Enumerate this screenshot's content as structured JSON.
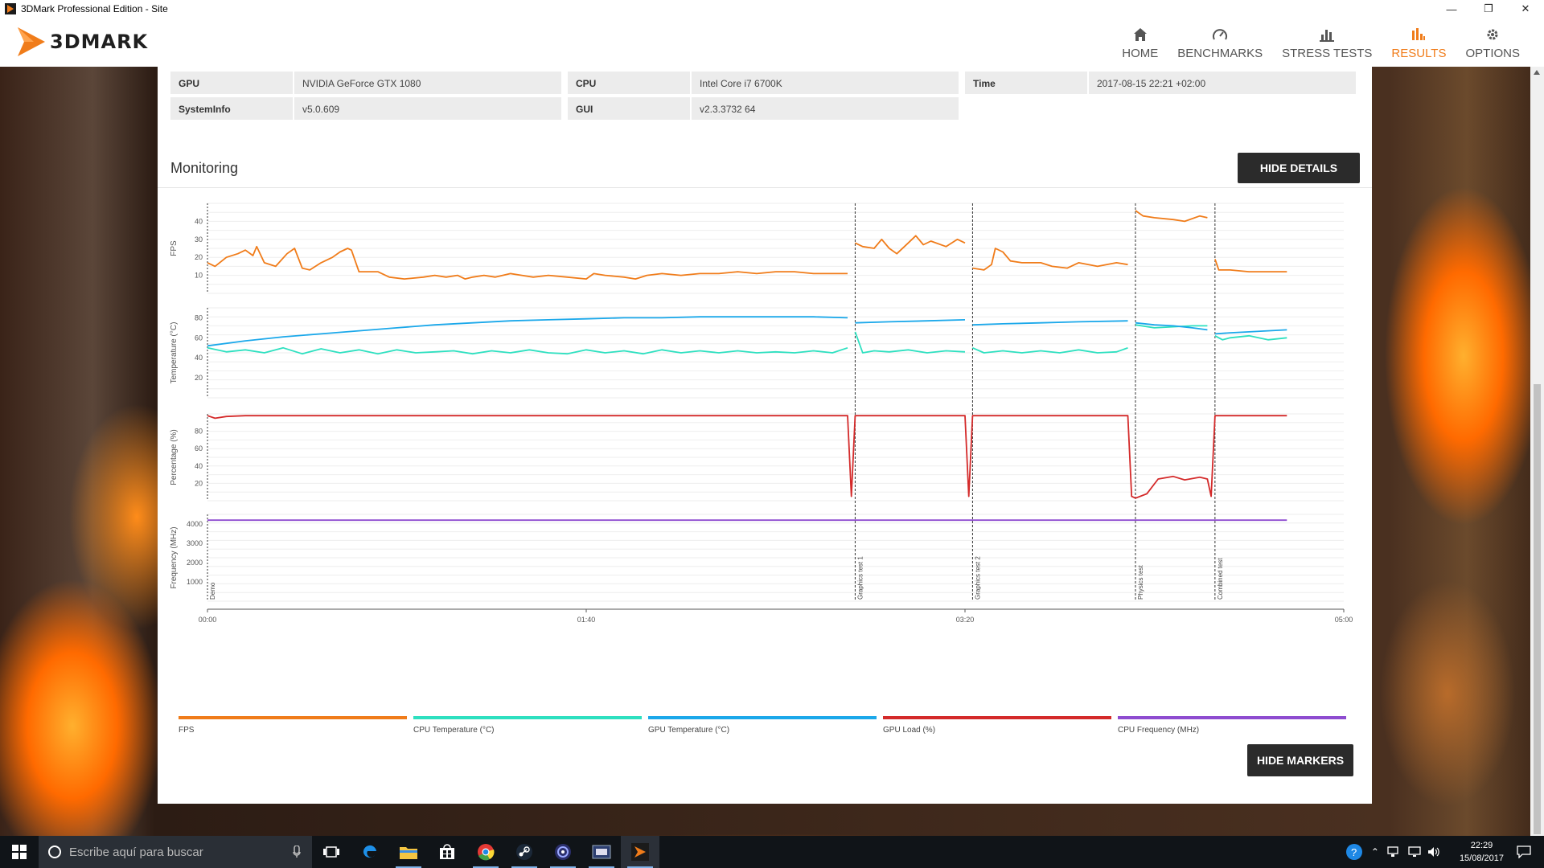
{
  "window": {
    "title": "3DMark Professional Edition - Site",
    "controls": [
      "—",
      "❐",
      "✕"
    ]
  },
  "app": {
    "logo_text": "3DMARK",
    "nav": [
      {
        "label": "HOME",
        "icon": "home-icon",
        "active": false
      },
      {
        "label": "BENCHMARKS",
        "icon": "gauge-icon",
        "active": false
      },
      {
        "label": "STRESS TESTS",
        "icon": "bar-chart-icon",
        "active": false
      },
      {
        "label": "RESULTS",
        "icon": "results-chart-icon",
        "active": true
      },
      {
        "label": "OPTIONS",
        "icon": "gear-icon",
        "active": false
      }
    ],
    "accent_color": "#f07c1a"
  },
  "system_info": {
    "gpu_label": "GPU",
    "gpu_value": "NVIDIA GeForce GTX 1080",
    "cpu_label": "CPU",
    "cpu_value": "Intel Core i7 6700K",
    "time_label": "Time",
    "time_value": "2017-08-15 22:21 +02:00",
    "sysinfo_label": "SystemInfo",
    "sysinfo_value": "v5.0.609",
    "gui_label": "GUI",
    "gui_value": "v2.3.3732 64"
  },
  "monitoring": {
    "title": "Monitoring",
    "hide_details_label": "HIDE DETAILS",
    "hide_markers_label": "HIDE MARKERS"
  },
  "chart_data": {
    "type": "line",
    "x_ticks": [
      "00:00",
      "01:40",
      "03:20",
      "05:00"
    ],
    "x_range_seconds": [
      0,
      300
    ],
    "markers": [
      {
        "label": "Demo",
        "t": 0
      },
      {
        "label": "Graphics test 1",
        "t": 171
      },
      {
        "label": "Graphics test 2",
        "t": 202
      },
      {
        "label": "Physics test",
        "t": 245
      },
      {
        "label": "Combined test",
        "t": 266
      }
    ],
    "panels": [
      {
        "ylabel": "FPS",
        "yticks": [
          10,
          20,
          30,
          40
        ],
        "ylim": [
          0,
          50
        ]
      },
      {
        "ylabel": "Temperature (°C)",
        "yticks": [
          20,
          40,
          60,
          80
        ],
        "ylim": [
          0,
          90
        ]
      },
      {
        "ylabel": "Percentage (%)",
        "yticks": [
          20,
          40,
          60,
          80
        ],
        "ylim": [
          0,
          100
        ]
      },
      {
        "ylabel": "Frequency (MHz)",
        "yticks": [
          1000,
          2000,
          3000,
          4000
        ],
        "ylim": [
          0,
          4500
        ]
      }
    ],
    "series": [
      {
        "name": "FPS",
        "color": "#f07c1a",
        "panel": 0,
        "points": [
          [
            0,
            17
          ],
          [
            2,
            15
          ],
          [
            5,
            20
          ],
          [
            8,
            22
          ],
          [
            10,
            24
          ],
          [
            12,
            21
          ],
          [
            13,
            26
          ],
          [
            15,
            17
          ],
          [
            18,
            15
          ],
          [
            21,
            22
          ],
          [
            23,
            25
          ],
          [
            25,
            14
          ],
          [
            27,
            13
          ],
          [
            30,
            17
          ],
          [
            33,
            20
          ],
          [
            35,
            23
          ],
          [
            37,
            25
          ],
          [
            38,
            24
          ],
          [
            40,
            12
          ],
          [
            45,
            12
          ],
          [
            48,
            9
          ],
          [
            52,
            8
          ],
          [
            57,
            9
          ],
          [
            60,
            10
          ],
          [
            63,
            9
          ],
          [
            66,
            10
          ],
          [
            68,
            8
          ],
          [
            70,
            9
          ],
          [
            73,
            10
          ],
          [
            76,
            9
          ],
          [
            80,
            11
          ],
          [
            83,
            10
          ],
          [
            86,
            9
          ],
          [
            90,
            10
          ],
          [
            95,
            9
          ],
          [
            100,
            8
          ],
          [
            102,
            11
          ],
          [
            105,
            10
          ],
          [
            110,
            9
          ],
          [
            113,
            8
          ],
          [
            116,
            10
          ],
          [
            120,
            11
          ],
          [
            125,
            10
          ],
          [
            130,
            11
          ],
          [
            135,
            11
          ],
          [
            140,
            12
          ],
          [
            145,
            11
          ],
          [
            150,
            12
          ],
          [
            155,
            12
          ],
          [
            160,
            11
          ],
          [
            165,
            11
          ],
          [
            169,
            11
          ],
          [
            171,
            28
          ],
          [
            173,
            26
          ],
          [
            176,
            25
          ],
          [
            178,
            30
          ],
          [
            180,
            25
          ],
          [
            182,
            22
          ],
          [
            185,
            28
          ],
          [
            187,
            32
          ],
          [
            189,
            27
          ],
          [
            191,
            29
          ],
          [
            195,
            26
          ],
          [
            198,
            30
          ],
          [
            200,
            28
          ],
          [
            202,
            14
          ],
          [
            205,
            13
          ],
          [
            207,
            16
          ],
          [
            208,
            25
          ],
          [
            210,
            23
          ],
          [
            212,
            18
          ],
          [
            215,
            17
          ],
          [
            220,
            17
          ],
          [
            223,
            15
          ],
          [
            227,
            14
          ],
          [
            230,
            17
          ],
          [
            235,
            15
          ],
          [
            240,
            17
          ],
          [
            243,
            16
          ],
          [
            245,
            46
          ],
          [
            247,
            43
          ],
          [
            250,
            42
          ],
          [
            255,
            41
          ],
          [
            258,
            40
          ],
          [
            262,
            43
          ],
          [
            264,
            42
          ],
          [
            266,
            19
          ],
          [
            267,
            13
          ],
          [
            270,
            13
          ],
          [
            275,
            12
          ],
          [
            280,
            12
          ],
          [
            285,
            12
          ]
        ]
      },
      {
        "name": "CPU Temperature (°C)",
        "color": "#2ee0c0",
        "panel": 1,
        "points": [
          [
            0,
            50
          ],
          [
            5,
            46
          ],
          [
            10,
            48
          ],
          [
            15,
            45
          ],
          [
            20,
            50
          ],
          [
            25,
            44
          ],
          [
            30,
            49
          ],
          [
            35,
            45
          ],
          [
            40,
            48
          ],
          [
            45,
            44
          ],
          [
            50,
            48
          ],
          [
            55,
            45
          ],
          [
            60,
            46
          ],
          [
            65,
            47
          ],
          [
            70,
            44
          ],
          [
            75,
            47
          ],
          [
            80,
            45
          ],
          [
            85,
            48
          ],
          [
            90,
            45
          ],
          [
            95,
            44
          ],
          [
            100,
            48
          ],
          [
            105,
            45
          ],
          [
            110,
            47
          ],
          [
            115,
            44
          ],
          [
            120,
            48
          ],
          [
            125,
            45
          ],
          [
            130,
            47
          ],
          [
            135,
            45
          ],
          [
            140,
            47
          ],
          [
            145,
            45
          ],
          [
            150,
            46
          ],
          [
            155,
            45
          ],
          [
            160,
            47
          ],
          [
            165,
            45
          ],
          [
            169,
            50
          ],
          [
            171,
            66
          ],
          [
            173,
            45
          ],
          [
            176,
            47
          ],
          [
            180,
            46
          ],
          [
            185,
            48
          ],
          [
            190,
            45
          ],
          [
            195,
            47
          ],
          [
            200,
            46
          ],
          [
            202,
            50
          ],
          [
            205,
            45
          ],
          [
            210,
            47
          ],
          [
            215,
            45
          ],
          [
            220,
            47
          ],
          [
            225,
            45
          ],
          [
            230,
            48
          ],
          [
            235,
            45
          ],
          [
            240,
            46
          ],
          [
            243,
            50
          ],
          [
            245,
            73
          ],
          [
            250,
            70
          ],
          [
            255,
            71
          ],
          [
            260,
            72
          ],
          [
            264,
            72
          ],
          [
            266,
            62
          ],
          [
            268,
            58
          ],
          [
            270,
            60
          ],
          [
            275,
            62
          ],
          [
            280,
            58
          ],
          [
            285,
            60
          ]
        ]
      },
      {
        "name": "GPU Temperature (°C)",
        "color": "#1ba8ea",
        "panel": 1,
        "points": [
          [
            0,
            52
          ],
          [
            10,
            57
          ],
          [
            20,
            61
          ],
          [
            30,
            64
          ],
          [
            40,
            67
          ],
          [
            50,
            70
          ],
          [
            60,
            73
          ],
          [
            70,
            75
          ],
          [
            80,
            77
          ],
          [
            90,
            78
          ],
          [
            100,
            79
          ],
          [
            110,
            80
          ],
          [
            120,
            80
          ],
          [
            130,
            81
          ],
          [
            140,
            81
          ],
          [
            150,
            81
          ],
          [
            160,
            81
          ],
          [
            169,
            80
          ],
          [
            171,
            75
          ],
          [
            180,
            76
          ],
          [
            190,
            77
          ],
          [
            200,
            78
          ],
          [
            202,
            73
          ],
          [
            210,
            74
          ],
          [
            220,
            75
          ],
          [
            230,
            76
          ],
          [
            243,
            77
          ],
          [
            245,
            75
          ],
          [
            250,
            73
          ],
          [
            255,
            72
          ],
          [
            260,
            70
          ],
          [
            264,
            68
          ],
          [
            266,
            64
          ],
          [
            270,
            65
          ],
          [
            280,
            67
          ],
          [
            285,
            68
          ]
        ]
      },
      {
        "name": "GPU Load (%)",
        "color": "#d42a2a",
        "panel": 2,
        "points": [
          [
            0,
            98
          ],
          [
            2,
            95
          ],
          [
            5,
            97
          ],
          [
            10,
            98
          ],
          [
            50,
            98
          ],
          [
            100,
            98
          ],
          [
            150,
            98
          ],
          [
            169,
            98
          ],
          [
            170,
            5
          ],
          [
            171,
            98
          ],
          [
            200,
            98
          ],
          [
            201,
            5
          ],
          [
            202,
            98
          ],
          [
            243,
            98
          ],
          [
            244,
            5
          ],
          [
            245,
            3
          ],
          [
            248,
            8
          ],
          [
            251,
            25
          ],
          [
            255,
            28
          ],
          [
            258,
            24
          ],
          [
            262,
            27
          ],
          [
            264,
            25
          ],
          [
            265,
            5
          ],
          [
            266,
            98
          ],
          [
            285,
            98
          ]
        ]
      },
      {
        "name": "CPU Frequency (MHz)",
        "color": "#8e4cd0",
        "panel": 3,
        "points": [
          [
            0,
            4200
          ],
          [
            100,
            4200
          ],
          [
            200,
            4200
          ],
          [
            285,
            4200
          ]
        ]
      }
    ]
  },
  "legend": [
    {
      "label": "FPS",
      "color": "#f07c1a"
    },
    {
      "label": "CPU Temperature (°C)",
      "color": "#2ee0c0"
    },
    {
      "label": "GPU Temperature (°C)",
      "color": "#1ba8ea"
    },
    {
      "label": "GPU Load (%)",
      "color": "#d42a2a"
    },
    {
      "label": "CPU Frequency (MHz)",
      "color": "#8e4cd0"
    }
  ],
  "taskbar": {
    "search_placeholder": "Escribe aquí para buscar",
    "time": "22:29",
    "date": "15/08/2017",
    "apps": [
      "task-view-icon",
      "edge-icon",
      "file-explorer-icon",
      "store-icon",
      "chrome-icon",
      "steam-icon",
      "cinema-icon",
      "cpuid-icon",
      "3dmark-icon"
    ]
  }
}
